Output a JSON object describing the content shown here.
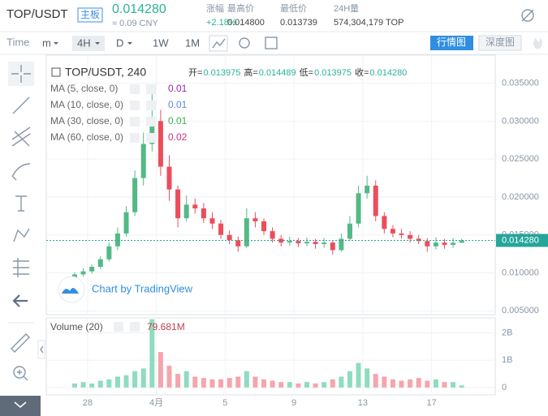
{
  "header": {
    "pair": "TOP/USDT",
    "board": "主板",
    "price": "0.014280",
    "cny": "≈ 0.09 CNY",
    "stats": [
      {
        "label": "涨幅",
        "value": "+2.18%"
      },
      {
        "label": "最高价",
        "value": "0.014800"
      },
      {
        "label": "最低价",
        "value": "0.013739"
      },
      {
        "label": "24H量",
        "value": "574,304,179 TOP"
      }
    ]
  },
  "toolbar": {
    "time": "Time",
    "intervals": [
      "m",
      "4H",
      "D",
      "1W",
      "1M"
    ],
    "active_interval": "4H",
    "views": [
      "行情图",
      "深度图"
    ]
  },
  "legend": {
    "symbol": "TOP/USDT, 240",
    "ohlc": [
      {
        "label": "开=",
        "value": "0.013975"
      },
      {
        "label": "高=",
        "value": "0.014489"
      },
      {
        "label": "低=",
        "value": "0.013975"
      },
      {
        "label": "收=",
        "value": "0.014280"
      }
    ],
    "ma": [
      {
        "name": "MA (5, close, 0)",
        "value": "0.01",
        "color": "#9c27b0"
      },
      {
        "name": "MA (10, close, 0)",
        "value": "0.01",
        "color": "#5b8bd6"
      },
      {
        "name": "MA (30, close, 0)",
        "value": "0.01",
        "color": "#3fae49"
      },
      {
        "name": "MA (60, close, 0)",
        "value": "0.02",
        "color": "#d1308a"
      }
    ],
    "volume_name": "Volume (20)",
    "volume_value": "79.681M",
    "watermark": "Chart by TradingView"
  },
  "chart_data": {
    "type": "candlestick",
    "up_color": "#53b987",
    "down_color": "#eb4d5c",
    "volume_up_color": "#8fdcc0",
    "volume_down_color": "#f5a5ad",
    "x": [
      -0.75,
      -0.25,
      0.25,
      0.75,
      1.25,
      1.75,
      2.25,
      2.75,
      3.25,
      3.75,
      4.25,
      4.75,
      5.25,
      5.75,
      6.25,
      6.75,
      7.25,
      7.75,
      8.25,
      8.75,
      9.25,
      9.75,
      10.25,
      10.75,
      11.25,
      11.75,
      12.25,
      12.75,
      13.25,
      13.75,
      14.25,
      14.75,
      15.25,
      15.75,
      16.25,
      16.75,
      17.25,
      17.75,
      18.25,
      18.75,
      19.25,
      19.75,
      20.25,
      20.75,
      21.25,
      21.75
    ],
    "open": [
      0.0092,
      0.0098,
      0.0102,
      0.0108,
      0.0118,
      0.0135,
      0.0152,
      0.018,
      0.0225,
      0.027,
      0.03,
      0.024,
      0.021,
      0.0172,
      0.019,
      0.0185,
      0.0172,
      0.0165,
      0.015,
      0.0143,
      0.0135,
      0.0172,
      0.0168,
      0.0155,
      0.0145,
      0.014,
      0.0142,
      0.0139,
      0.0141,
      0.0138,
      0.014,
      0.013,
      0.0145,
      0.0165,
      0.0205,
      0.0215,
      0.0175,
      0.0158,
      0.0152,
      0.015,
      0.0145,
      0.0142,
      0.0135,
      0.014,
      0.0137,
      0.013975
    ],
    "high": [
      0.0101,
      0.0106,
      0.0111,
      0.0122,
      0.014,
      0.016,
      0.0188,
      0.0235,
      0.0285,
      0.034,
      0.0315,
      0.0255,
      0.0215,
      0.0202,
      0.0198,
      0.0192,
      0.018,
      0.017,
      0.0156,
      0.0148,
      0.0185,
      0.018,
      0.0172,
      0.016,
      0.015,
      0.0148,
      0.0146,
      0.0147,
      0.0145,
      0.0146,
      0.0143,
      0.0152,
      0.0175,
      0.0215,
      0.0228,
      0.0222,
      0.018,
      0.0163,
      0.0158,
      0.0155,
      0.015,
      0.0146,
      0.0147,
      0.0145,
      0.0146,
      0.014489
    ],
    "low": [
      0.0088,
      0.0095,
      0.0099,
      0.0105,
      0.0115,
      0.013,
      0.0148,
      0.0175,
      0.0215,
      0.026,
      0.0228,
      0.0195,
      0.016,
      0.0168,
      0.0178,
      0.0166,
      0.0158,
      0.0145,
      0.0138,
      0.0128,
      0.0133,
      0.016,
      0.015,
      0.014,
      0.0135,
      0.0136,
      0.0134,
      0.0135,
      0.0132,
      0.0133,
      0.0124,
      0.0128,
      0.0142,
      0.016,
      0.0198,
      0.0168,
      0.0152,
      0.0147,
      0.0145,
      0.014,
      0.0138,
      0.0128,
      0.0131,
      0.0132,
      0.0133,
      0.013975
    ],
    "close": [
      0.0098,
      0.0102,
      0.0108,
      0.0118,
      0.0135,
      0.0152,
      0.018,
      0.0225,
      0.027,
      0.03,
      0.024,
      0.021,
      0.0172,
      0.019,
      0.0185,
      0.0172,
      0.0165,
      0.015,
      0.0143,
      0.0135,
      0.0172,
      0.0168,
      0.0155,
      0.0145,
      0.014,
      0.0142,
      0.0139,
      0.0141,
      0.0138,
      0.014,
      0.013,
      0.0145,
      0.0165,
      0.0205,
      0.0215,
      0.0175,
      0.0158,
      0.0152,
      0.015,
      0.0145,
      0.0142,
      0.0135,
      0.014,
      0.0137,
      0.013975,
      0.01428
    ],
    "volume": [
      150000000,
      200000000,
      150000000,
      250000000,
      300000000,
      400000000,
      450000000,
      600000000,
      700000000,
      2500000000,
      1300000000,
      800000000,
      500000000,
      600000000,
      400000000,
      350000000,
      300000000,
      300000000,
      350000000,
      400000000,
      600000000,
      400000000,
      300000000,
      250000000,
      200000000,
      200000000,
      150000000,
      200000000,
      150000000,
      200000000,
      300000000,
      400000000,
      600000000,
      900000000,
      700000000,
      500000000,
      400000000,
      300000000,
      250000000,
      300000000,
      350000000,
      250000000,
      300000000,
      200000000,
      200000000,
      79681000
    ],
    "xlim": [
      -2.4,
      23.7
    ],
    "xticks": [
      {
        "value": 0,
        "label": "28"
      },
      {
        "value": 4,
        "label": "4月"
      },
      {
        "value": 8,
        "label": "5"
      },
      {
        "value": 12,
        "label": "9"
      },
      {
        "value": 16,
        "label": "13"
      },
      {
        "value": 20,
        "label": "17"
      }
    ],
    "ylim": [
      0.0045,
      0.0387
    ],
    "yticks": [
      {
        "value": 0.005,
        "label": "0.005000"
      },
      {
        "value": 0.01,
        "label": "0.010000"
      },
      {
        "value": 0.015,
        "label": "0.015000"
      },
      {
        "value": 0.02,
        "label": "0.020000"
      },
      {
        "value": 0.025,
        "label": "0.025000"
      },
      {
        "value": 0.03,
        "label": "0.030000"
      },
      {
        "value": 0.035,
        "label": "0.035000"
      }
    ],
    "last_price": 0.01428,
    "last_price_label": "0.014280",
    "last_price_color": "#26a69a",
    "volume_ylim": [
      -270000000,
      2550000000
    ],
    "volume_yticks": [
      0,
      {
        "value": 1000000000,
        "label": "1B"
      },
      {
        "value": 2000000000,
        "label": "2B"
      }
    ],
    "grid": true
  }
}
